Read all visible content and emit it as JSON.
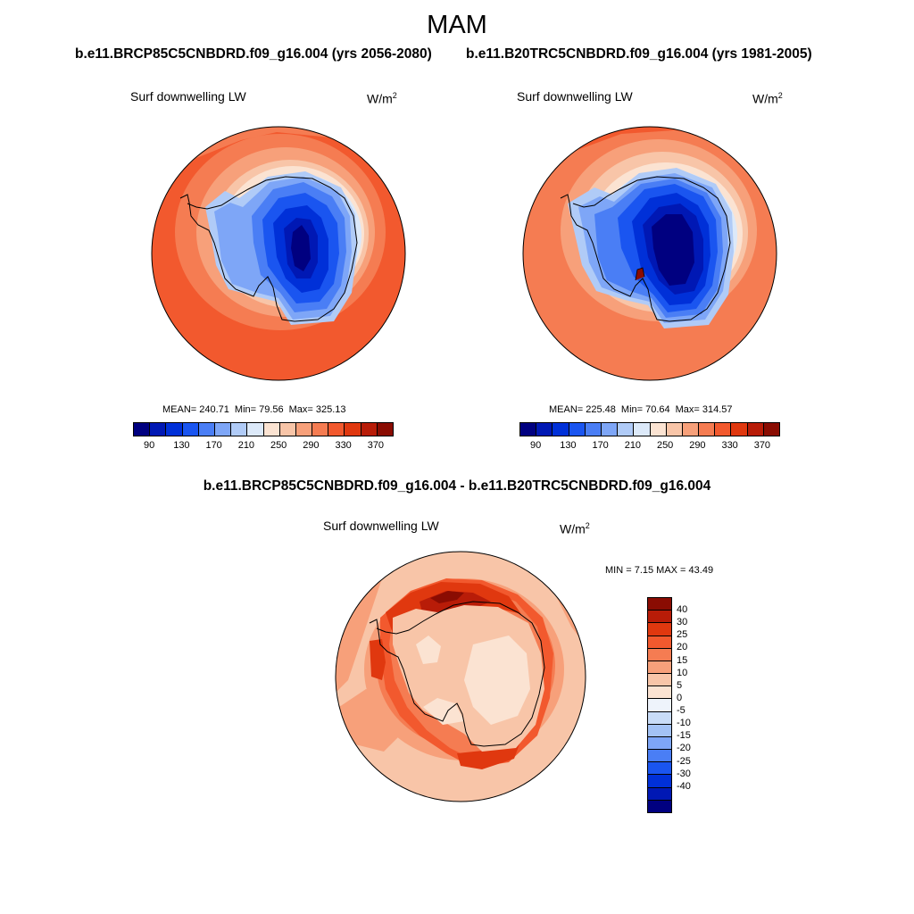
{
  "page": {
    "title": "MAM",
    "diff_title": "b.e11.BRCP85C5CNBDRD.f09_g16.004 - b.e11.B20TRC5CNBDRD.f09_g16.004"
  },
  "panels": [
    {
      "run_title": "b.e11.BRCP85C5CNBDRD.f09_g16.004 (yrs 2056-2080)",
      "variable": "Surf downwelling LW",
      "units": "W/m",
      "units_exp": "2",
      "mean_text": "MEAN= 240.71",
      "min_text": "Min=  79.56",
      "max_text": "Max= 325.13"
    },
    {
      "run_title": "b.e11.B20TRC5CNBDRD.f09_g16.004 (yrs 1981-2005)",
      "variable": "Surf downwelling LW",
      "units": "W/m",
      "units_exp": "2",
      "mean_text": "MEAN= 225.48",
      "min_text": "Min=  70.64",
      "max_text": "Max= 314.57"
    },
    {
      "variable": "Surf downwelling LW",
      "units": "W/m",
      "units_exp": "2",
      "minmax_text": "MIN =   7.15 MAX =  43.49"
    }
  ],
  "colorbar_abs": {
    "colors": [
      "#000080",
      "#0018b4",
      "#0030d8",
      "#1a55f0",
      "#4a7ef5",
      "#7ea6f7",
      "#b0cbf7",
      "#dce9f9",
      "#fbe3d2",
      "#f8c5a8",
      "#f7a07a",
      "#f57c52",
      "#f2592e",
      "#e0380f",
      "#b81c08",
      "#8a0c02"
    ],
    "tick_labels": [
      "90",
      "130",
      "170",
      "210",
      "250",
      "290",
      "330",
      "370"
    ]
  },
  "colorbar_diff": {
    "colors": [
      "#8a0c02",
      "#b81c08",
      "#e0380f",
      "#f2592e",
      "#f57c52",
      "#f7a07a",
      "#f8c5a8",
      "#fbe3d2",
      "#eef3fb",
      "#c9dcf7",
      "#a3c2f5",
      "#7ea6f7",
      "#4a7ef5",
      "#1a55f0",
      "#0030d8",
      "#0018b4",
      "#000080"
    ],
    "tick_labels": [
      "40",
      "30",
      "25",
      "20",
      "15",
      "10",
      "5",
      "0",
      "-5",
      "-10",
      "-15",
      "-20",
      "-25",
      "-30",
      "-40"
    ]
  }
}
